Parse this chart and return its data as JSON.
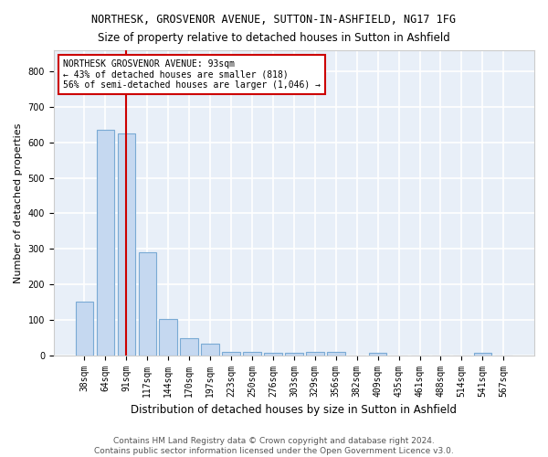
{
  "title1": "NORTHESK, GROSVENOR AVENUE, SUTTON-IN-ASHFIELD, NG17 1FG",
  "title2": "Size of property relative to detached houses in Sutton in Ashfield",
  "xlabel": "Distribution of detached houses by size in Sutton in Ashfield",
  "ylabel": "Number of detached properties",
  "categories": [
    "38sqm",
    "64sqm",
    "91sqm",
    "117sqm",
    "144sqm",
    "170sqm",
    "197sqm",
    "223sqm",
    "250sqm",
    "276sqm",
    "303sqm",
    "329sqm",
    "356sqm",
    "382sqm",
    "409sqm",
    "435sqm",
    "461sqm",
    "488sqm",
    "514sqm",
    "541sqm",
    "567sqm"
  ],
  "values": [
    150,
    635,
    625,
    290,
    103,
    47,
    32,
    10,
    10,
    8,
    7,
    10,
    10,
    0,
    8,
    0,
    0,
    0,
    0,
    8,
    0
  ],
  "bar_color": "#c5d8f0",
  "bar_edge_color": "#7aaad4",
  "bar_edge_width": 0.8,
  "vline_x_idx": 2,
  "vline_color": "#cc0000",
  "annotation_title": "NORTHESK GROSVENOR AVENUE: 93sqm",
  "annotation_line1": "← 43% of detached houses are smaller (818)",
  "annotation_line2": "56% of semi-detached houses are larger (1,046) →",
  "annotation_box_color": "#ffffff",
  "annotation_box_edge": "#cc0000",
  "ylim": [
    0,
    860
  ],
  "yticks": [
    0,
    100,
    200,
    300,
    400,
    500,
    600,
    700,
    800
  ],
  "fig_bg_color": "#ffffff",
  "plot_bg_color": "#e8eff8",
  "footer1": "Contains HM Land Registry data © Crown copyright and database right 2024.",
  "footer2": "Contains public sector information licensed under the Open Government Licence v3.0.",
  "title1_fontsize": 8.5,
  "title2_fontsize": 8.5,
  "xlabel_fontsize": 8.5,
  "ylabel_fontsize": 8.0,
  "tick_fontsize": 7,
  "footer_fontsize": 6.5,
  "annotation_fontsize": 7.0
}
